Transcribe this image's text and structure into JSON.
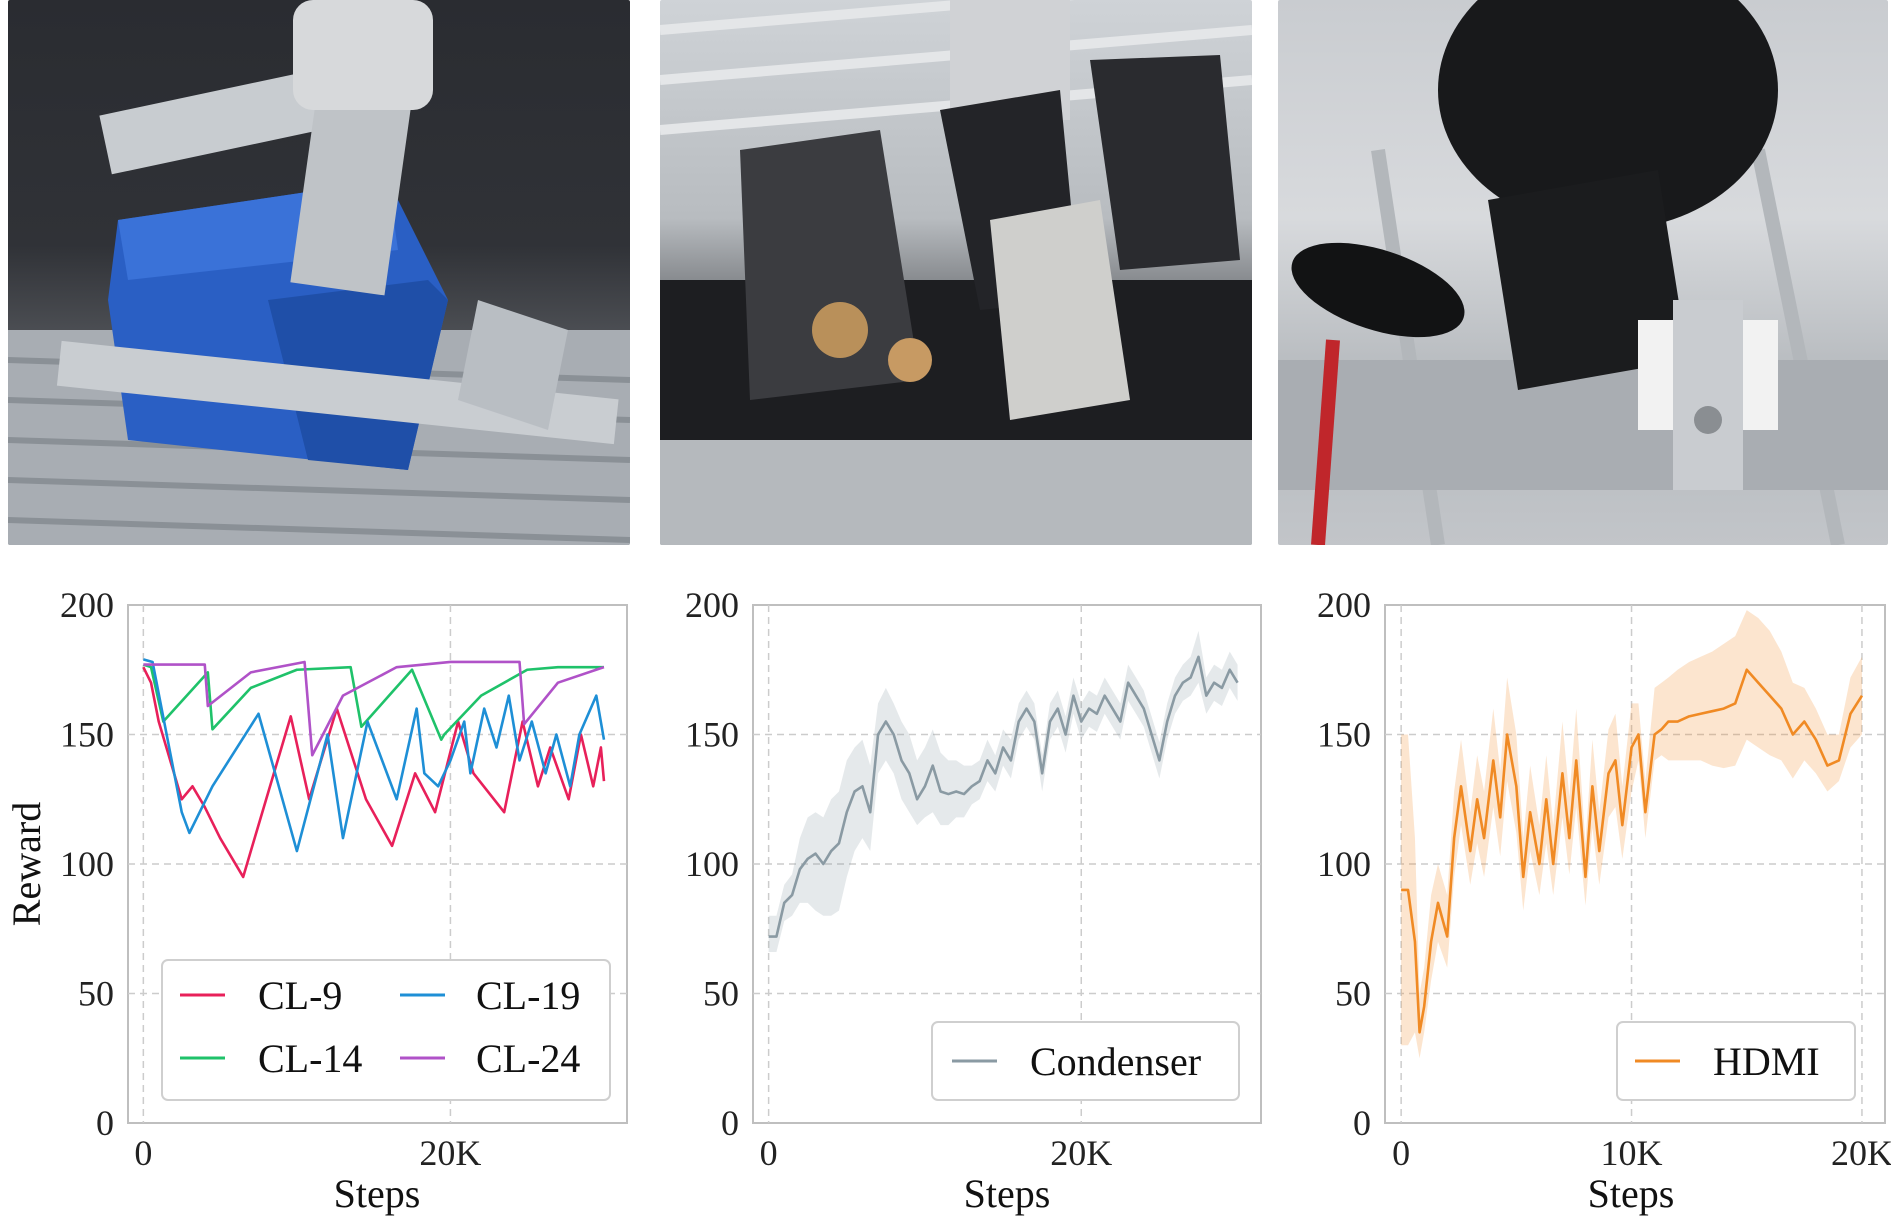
{
  "photos": [
    {
      "name": "cable-holder-photo"
    },
    {
      "name": "condenser-photo"
    },
    {
      "name": "hdmi-photo"
    }
  ],
  "colors": {
    "cl9": "#e8205a",
    "cl14": "#1fc26a",
    "cl19": "#1e8fd6",
    "cl24": "#b052c8",
    "condenser": "#8a9aa3",
    "hdmi": "#f08a24"
  },
  "chart_data": [
    {
      "type": "line",
      "xlabel": "Steps",
      "ylabel": "Reward",
      "ylim": [
        0,
        200
      ],
      "xlim": [
        -1000,
        31500
      ],
      "xticks": [
        0,
        20000
      ],
      "xtick_labels": [
        "0",
        "20K"
      ],
      "yticks": [
        0,
        50,
        100,
        150,
        200
      ],
      "ytick_labels": [
        "0",
        "50",
        "100",
        "150",
        "200"
      ],
      "grid": true,
      "legend": "bottom-left",
      "series": [
        {
          "name": "CL-9",
          "color_key": "cl9",
          "x": [
            0,
            500,
            1000,
            2500,
            3200,
            4000,
            5000,
            6500,
            8000,
            9600,
            10800,
            12600,
            14500,
            16200,
            17700,
            19000,
            20500,
            21500,
            23500,
            24700,
            25700,
            26500,
            27700,
            28500,
            29300,
            29800,
            30000
          ],
          "y": [
            176,
            170,
            155,
            125,
            130,
            122,
            110,
            95,
            125,
            157,
            125,
            160,
            125,
            107,
            135,
            120,
            155,
            135,
            120,
            155,
            130,
            145,
            125,
            150,
            130,
            145,
            132
          ]
        },
        {
          "name": "CL-14",
          "color_key": "cl14",
          "x": [
            0,
            500,
            1300,
            4200,
            4500,
            7000,
            10000,
            13500,
            14200,
            16000,
            17500,
            19400,
            19600,
            22000,
            25000,
            27000,
            30000
          ],
          "y": [
            177,
            176,
            155,
            174,
            152,
            168,
            175,
            176,
            153,
            165,
            175,
            148,
            150,
            165,
            175,
            176,
            176
          ]
        },
        {
          "name": "CL-19",
          "color_key": "cl19",
          "x": [
            0,
            600,
            2500,
            3000,
            4500,
            7500,
            10000,
            12000,
            13000,
            14600,
            16500,
            17800,
            18300,
            19200,
            20000,
            20900,
            21300,
            22200,
            23000,
            23800,
            24500,
            25300,
            26200,
            26900,
            27800,
            28400,
            29500,
            30000
          ],
          "y": [
            179,
            178,
            120,
            112,
            130,
            158,
            105,
            150,
            110,
            155,
            125,
            160,
            135,
            130,
            140,
            155,
            135,
            160,
            145,
            165,
            140,
            155,
            135,
            150,
            130,
            150,
            165,
            148
          ]
        },
        {
          "name": "CL-24",
          "color_key": "cl24",
          "x": [
            0,
            3000,
            4000,
            4200,
            7000,
            10500,
            11000,
            13000,
            16500,
            20000,
            24500,
            24800,
            27000,
            30000
          ],
          "y": [
            177,
            177,
            177,
            161,
            174,
            178,
            142,
            165,
            176,
            178,
            178,
            154,
            170,
            176
          ]
        }
      ],
      "legend_layout": "2-columns"
    },
    {
      "type": "line",
      "xlabel": "Steps",
      "ylabel": "",
      "ylim": [
        0,
        200
      ],
      "xlim": [
        -1000,
        31500
      ],
      "xticks": [
        0,
        20000
      ],
      "xtick_labels": [
        "0",
        "20K"
      ],
      "yticks": [
        0,
        50,
        100,
        150,
        200
      ],
      "ytick_labels": [
        "0",
        "50",
        "100",
        "150",
        "200"
      ],
      "grid": true,
      "legend": "bottom-right",
      "series": [
        {
          "name": "Condenser",
          "color_key": "condenser",
          "x": [
            0,
            500,
            1000,
            1500,
            2000,
            2500,
            3000,
            3500,
            4000,
            4500,
            5000,
            5500,
            6000,
            6500,
            7000,
            7500,
            8000,
            8500,
            9000,
            9500,
            10000,
            10500,
            11000,
            11500,
            12000,
            12500,
            13000,
            13500,
            14000,
            14500,
            15000,
            15500,
            16000,
            16500,
            17000,
            17500,
            18000,
            18500,
            19000,
            19500,
            20000,
            20500,
            21000,
            21500,
            22000,
            22500,
            23000,
            23500,
            24000,
            24500,
            25000,
            25500,
            26000,
            26500,
            27000,
            27500,
            28000,
            28500,
            29000,
            29500,
            30000
          ],
          "y": [
            72,
            72,
            85,
            88,
            98,
            102,
            104,
            100,
            105,
            108,
            120,
            128,
            130,
            120,
            150,
            155,
            150,
            140,
            135,
            125,
            130,
            138,
            128,
            127,
            128,
            127,
            130,
            132,
            140,
            135,
            145,
            140,
            155,
            160,
            155,
            135,
            155,
            160,
            150,
            165,
            155,
            160,
            158,
            165,
            160,
            155,
            170,
            165,
            160,
            150,
            140,
            155,
            165,
            170,
            172,
            180,
            165,
            170,
            168,
            175,
            170
          ],
          "lower": [
            66,
            66,
            78,
            80,
            85,
            85,
            82,
            80,
            80,
            82,
            95,
            105,
            110,
            105,
            135,
            140,
            135,
            125,
            120,
            115,
            118,
            120,
            115,
            115,
            118,
            118,
            123,
            125,
            132,
            128,
            138,
            133,
            148,
            153,
            148,
            128,
            148,
            153,
            143,
            158,
            148,
            153,
            151,
            158,
            153,
            148,
            163,
            158,
            153,
            143,
            133,
            148,
            158,
            163,
            165,
            170,
            158,
            163,
            161,
            168,
            163
          ],
          "upper": [
            80,
            80,
            92,
            96,
            110,
            118,
            120,
            118,
            125,
            128,
            140,
            145,
            148,
            138,
            162,
            168,
            162,
            155,
            150,
            140,
            145,
            152,
            143,
            140,
            140,
            138,
            138,
            140,
            148,
            142,
            152,
            148,
            162,
            167,
            162,
            142,
            162,
            167,
            157,
            172,
            162,
            167,
            165,
            172,
            167,
            162,
            177,
            172,
            167,
            157,
            147,
            162,
            172,
            177,
            180,
            190,
            172,
            177,
            175,
            182,
            177
          ]
        }
      ]
    },
    {
      "type": "line",
      "xlabel": "Steps",
      "ylabel": "",
      "ylim": [
        0,
        200
      ],
      "xlim": [
        -700,
        21000
      ],
      "xticks": [
        0,
        10000,
        20000
      ],
      "xtick_labels": [
        "0",
        "10K",
        "20K"
      ],
      "yticks": [
        0,
        50,
        100,
        150,
        200
      ],
      "ytick_labels": [
        "0",
        "50",
        "100",
        "150",
        "200"
      ],
      "grid": true,
      "legend": "bottom-right",
      "series": [
        {
          "name": "HDMI",
          "color_key": "hdmi",
          "x": [
            0,
            300,
            600,
            800,
            1000,
            1300,
            1600,
            2000,
            2300,
            2600,
            3000,
            3300,
            3600,
            4000,
            4300,
            4600,
            5000,
            5300,
            5600,
            6000,
            6300,
            6600,
            7000,
            7300,
            7600,
            8000,
            8300,
            8600,
            9000,
            9300,
            9600,
            10000,
            10300,
            10600,
            11000,
            11300,
            11600,
            12000,
            12500,
            13000,
            13500,
            14000,
            14500,
            15000,
            15500,
            16000,
            16500,
            17000,
            17500,
            18000,
            18500,
            19000,
            19500,
            20000
          ],
          "y": [
            90,
            90,
            70,
            35,
            45,
            70,
            85,
            72,
            110,
            130,
            105,
            125,
            110,
            140,
            118,
            150,
            130,
            95,
            120,
            100,
            125,
            100,
            135,
            110,
            140,
            95,
            130,
            105,
            135,
            140,
            115,
            145,
            150,
            120,
            150,
            152,
            155,
            155,
            157,
            158,
            159,
            160,
            162,
            175,
            170,
            165,
            160,
            150,
            155,
            148,
            138,
            140,
            158,
            165
          ],
          "lower": [
            30,
            30,
            35,
            25,
            35,
            55,
            70,
            60,
            95,
            115,
            92,
            108,
            95,
            122,
            103,
            132,
            112,
            82,
            105,
            88,
            108,
            88,
            118,
            96,
            122,
            84,
            114,
            92,
            118,
            122,
            102,
            128,
            140,
            110,
            140,
            142,
            140,
            140,
            140,
            140,
            138,
            137,
            138,
            148,
            145,
            142,
            140,
            133,
            140,
            135,
            128,
            132,
            145,
            150
          ],
          "upper": [
            150,
            150,
            110,
            50,
            60,
            88,
            100,
            88,
            128,
            148,
            120,
            142,
            128,
            160,
            136,
            172,
            150,
            110,
            138,
            115,
            142,
            115,
            155,
            126,
            160,
            108,
            148,
            120,
            152,
            158,
            130,
            162,
            162,
            132,
            168,
            170,
            172,
            175,
            178,
            180,
            182,
            185,
            188,
            198,
            195,
            190,
            182,
            170,
            168,
            160,
            150,
            150,
            172,
            180
          ]
        }
      ]
    }
  ]
}
